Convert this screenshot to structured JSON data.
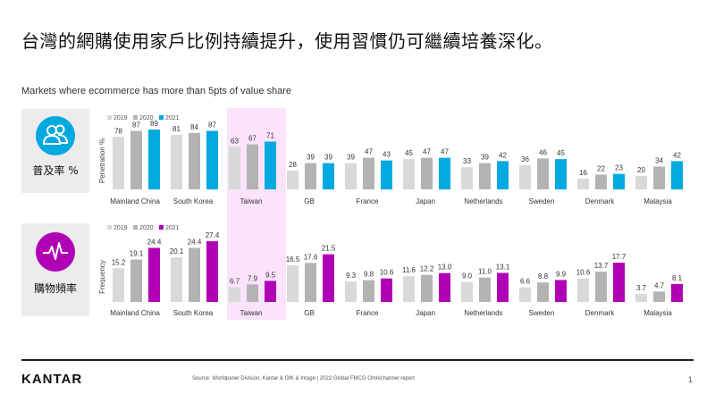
{
  "title": "台灣的網購使用家戶比例持續提升，使用習慣仍可繼續培養深化。",
  "subtitle": "Markets where ecommerce has more than 5pts of value share",
  "panels": {
    "penetration_label": "普及率 %",
    "frequency_label": "購物頻率",
    "penetration_icon": "people-icon",
    "frequency_icon": "pulse-icon",
    "penetration_color": "#00a9e0",
    "frequency_color": "#b000b5"
  },
  "footer": {
    "logo": "KANTAR",
    "source": "Source: Worldpanel Division,  Kantar & GfK & Intage | 2022 Global FMCG Omnichannel report",
    "page": "1"
  },
  "chart_data": [
    {
      "type": "bar",
      "ylabel": "Penetration %",
      "categories": [
        "Mainland China",
        "South Korea",
        "Taiwan",
        "GB",
        "France",
        "Japan",
        "Netherlands",
        "Sweden",
        "Denmark",
        "Malaysia"
      ],
      "legend_position": "top-left",
      "highlighted_category": "Taiwan",
      "series": [
        {
          "name": "2019",
          "color": "#d9d9d9",
          "values": [
            78,
            81,
            63,
            28,
            39,
            45,
            33,
            36,
            16,
            20
          ]
        },
        {
          "name": "2020",
          "color": "#b3b3b3",
          "values": [
            87,
            84,
            67,
            39,
            47,
            47,
            39,
            46,
            22,
            34
          ]
        },
        {
          "name": "2021",
          "color": "#00a9e0",
          "values": [
            89,
            87,
            71,
            39,
            43,
            47,
            42,
            45,
            23,
            42
          ]
        }
      ]
    },
    {
      "type": "bar",
      "ylabel": "Frequency",
      "categories": [
        "Mainland China",
        "South Korea",
        "Taiwan",
        "GB",
        "France",
        "Japan",
        "Netherlands",
        "Sweden",
        "Denmark",
        "Malaysia"
      ],
      "legend_position": "top-left",
      "highlighted_category": "Taiwan",
      "series": [
        {
          "name": "2019",
          "color": "#d9d9d9",
          "values": [
            15.2,
            20.1,
            6.7,
            16.5,
            9.3,
            11.6,
            9.0,
            6.6,
            10.6,
            3.7
          ]
        },
        {
          "name": "2020",
          "color": "#b3b3b3",
          "values": [
            19.1,
            24.4,
            7.9,
            17.6,
            9.8,
            12.2,
            11.0,
            8.8,
            13.7,
            4.7
          ]
        },
        {
          "name": "2021",
          "color": "#b000b5",
          "values": [
            24.4,
            27.4,
            9.5,
            21.5,
            10.6,
            13.0,
            13.1,
            9.9,
            17.7,
            8.1
          ]
        }
      ]
    }
  ]
}
